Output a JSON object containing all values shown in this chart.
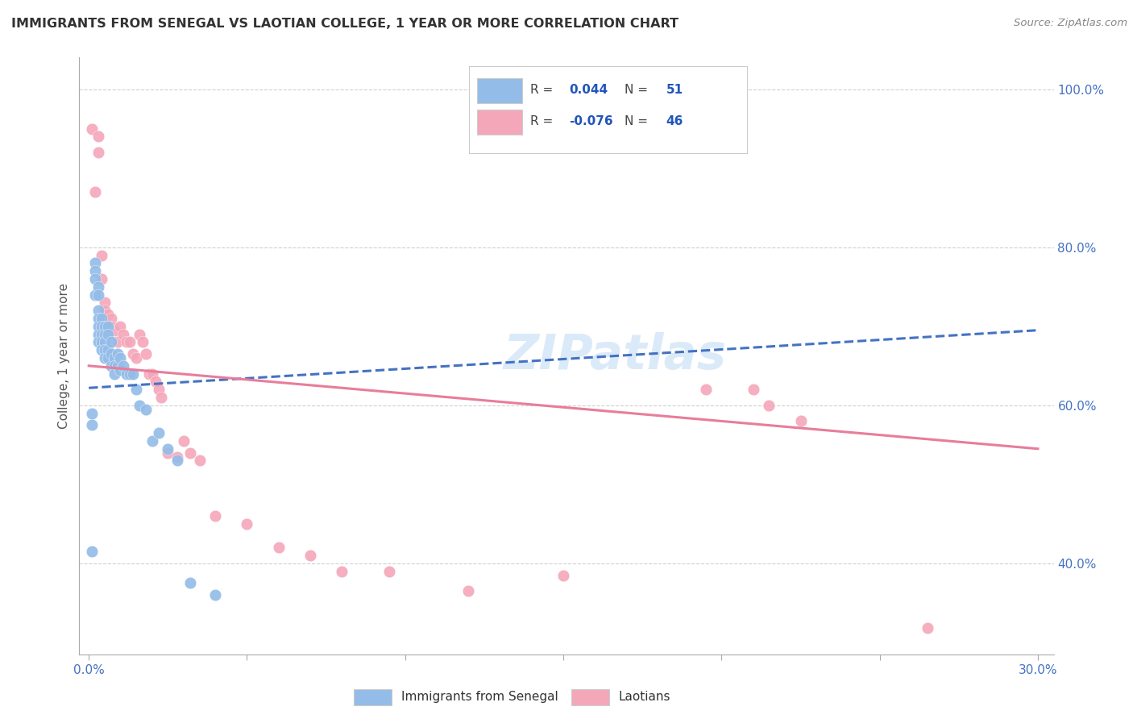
{
  "title": "IMMIGRANTS FROM SENEGAL VS LAOTIAN COLLEGE, 1 YEAR OR MORE CORRELATION CHART",
  "source": "Source: ZipAtlas.com",
  "xlabel_blue": "Immigrants from Senegal",
  "xlabel_pink": "Laotians",
  "ylabel": "College, 1 year or more",
  "xlim": [
    -0.003,
    0.305
  ],
  "ylim": [
    0.285,
    1.04
  ],
  "xtick_positions": [
    0.0,
    0.05,
    0.1,
    0.15,
    0.2,
    0.25,
    0.3
  ],
  "xtick_labels": [
    "0.0%",
    "",
    "",
    "",
    "",
    "",
    "30.0%"
  ],
  "ytick_right_positions": [
    0.4,
    0.6,
    0.8,
    1.0
  ],
  "ytick_right_labels": [
    "40.0%",
    "60.0%",
    "80.0%",
    "100.0%"
  ],
  "ytick_grid_positions": [
    0.4,
    0.6,
    0.8,
    1.0
  ],
  "blue_color": "#93bce8",
  "pink_color": "#f4a7b9",
  "blue_line_color": "#4472c4",
  "pink_line_color": "#e87d9b",
  "watermark": "ZIPatlas",
  "blue_x": [
    0.001,
    0.001,
    0.002,
    0.002,
    0.002,
    0.002,
    0.003,
    0.003,
    0.003,
    0.003,
    0.003,
    0.003,
    0.003,
    0.004,
    0.004,
    0.004,
    0.004,
    0.004,
    0.005,
    0.005,
    0.005,
    0.005,
    0.005,
    0.006,
    0.006,
    0.006,
    0.006,
    0.007,
    0.007,
    0.007,
    0.008,
    0.008,
    0.008,
    0.009,
    0.009,
    0.01,
    0.01,
    0.011,
    0.012,
    0.013,
    0.014,
    0.015,
    0.016,
    0.018,
    0.02,
    0.022,
    0.025,
    0.028,
    0.032,
    0.04,
    0.001
  ],
  "blue_y": [
    0.59,
    0.575,
    0.78,
    0.77,
    0.76,
    0.74,
    0.75,
    0.74,
    0.72,
    0.71,
    0.7,
    0.69,
    0.68,
    0.71,
    0.7,
    0.69,
    0.68,
    0.67,
    0.7,
    0.69,
    0.68,
    0.67,
    0.66,
    0.7,
    0.69,
    0.67,
    0.66,
    0.68,
    0.665,
    0.65,
    0.66,
    0.65,
    0.64,
    0.665,
    0.65,
    0.66,
    0.645,
    0.65,
    0.64,
    0.64,
    0.64,
    0.62,
    0.6,
    0.595,
    0.555,
    0.565,
    0.545,
    0.53,
    0.375,
    0.36,
    0.415
  ],
  "pink_x": [
    0.001,
    0.002,
    0.003,
    0.003,
    0.004,
    0.004,
    0.005,
    0.005,
    0.006,
    0.006,
    0.007,
    0.007,
    0.008,
    0.009,
    0.01,
    0.011,
    0.012,
    0.013,
    0.014,
    0.015,
    0.016,
    0.017,
    0.018,
    0.019,
    0.02,
    0.021,
    0.022,
    0.023,
    0.025,
    0.028,
    0.03,
    0.032,
    0.035,
    0.04,
    0.05,
    0.06,
    0.07,
    0.08,
    0.095,
    0.12,
    0.15,
    0.195,
    0.21,
    0.215,
    0.225,
    0.265
  ],
  "pink_y": [
    0.95,
    0.87,
    0.94,
    0.92,
    0.79,
    0.76,
    0.73,
    0.72,
    0.715,
    0.7,
    0.71,
    0.7,
    0.695,
    0.68,
    0.7,
    0.69,
    0.68,
    0.68,
    0.665,
    0.66,
    0.69,
    0.68,
    0.665,
    0.64,
    0.64,
    0.63,
    0.62,
    0.61,
    0.54,
    0.535,
    0.555,
    0.54,
    0.53,
    0.46,
    0.45,
    0.42,
    0.41,
    0.39,
    0.39,
    0.365,
    0.385,
    0.62,
    0.62,
    0.6,
    0.58,
    0.318
  ],
  "blue_trend_x": [
    0.0,
    0.3
  ],
  "blue_trend_y": [
    0.622,
    0.695
  ],
  "pink_trend_x": [
    0.0,
    0.3
  ],
  "pink_trend_y": [
    0.65,
    0.545
  ]
}
